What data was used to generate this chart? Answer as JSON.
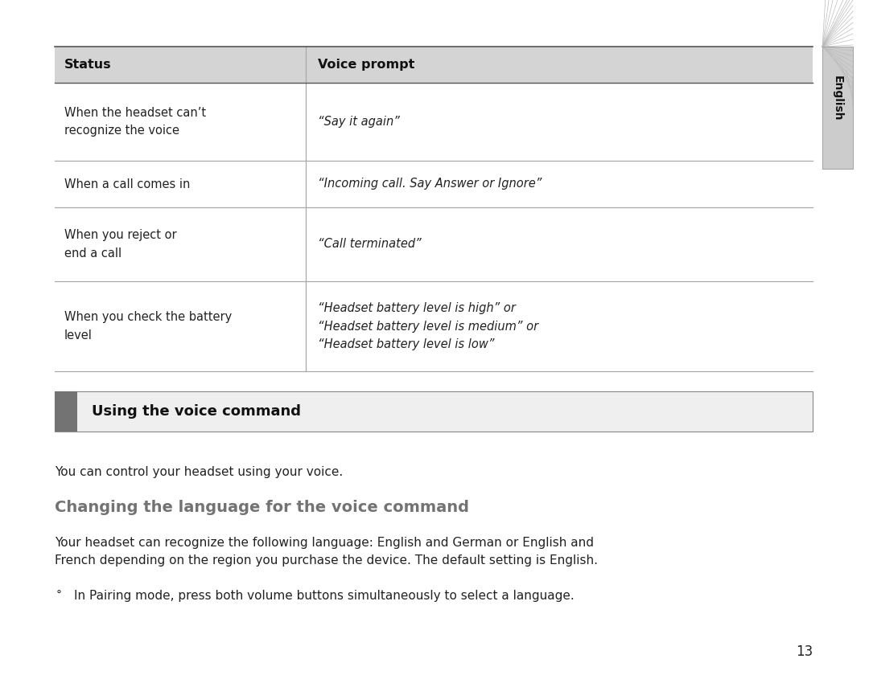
{
  "bg_color": "#ffffff",
  "header_bg": "#d4d4d4",
  "header_text_color": "#111111",
  "body_text_color": "#222222",
  "line_color": "#aaaaaa",
  "table_rows": [
    {
      "status": "When the headset can’t\nrecognize the voice",
      "voice_prompt": "“Say it again”"
    },
    {
      "status": "When a call comes in",
      "voice_prompt": "“Incoming call. Say Answer or Ignore”"
    },
    {
      "status": "When you reject or\nend a call",
      "voice_prompt": "“Call terminated”"
    },
    {
      "status": "When you check the battery\nlevel",
      "voice_prompt": "“Headset battery level is high” or\n“Headset battery level is medium” or\n“Headset battery level is low”"
    }
  ],
  "section_title": "Using the voice command",
  "section_title_bg": "#efefef",
  "section_title_bar_color": "#737373",
  "body_paragraph": "You can control your headset using your voice.",
  "subheading": "Changing the language for the voice command",
  "subheading_color": "#737373",
  "paragraph2": "Your headset can recognize the following language: English and German or English and\nFrench depending on the region you purchase the device. The default setting is English.",
  "bullet_text": "In Pairing mode, press both volume buttons simultaneously to select a language.",
  "page_number": "13",
  "english_tab_text": "English",
  "english_tab_color": "#cccccc",
  "english_tab_hatch_color": "#bbbbbb"
}
